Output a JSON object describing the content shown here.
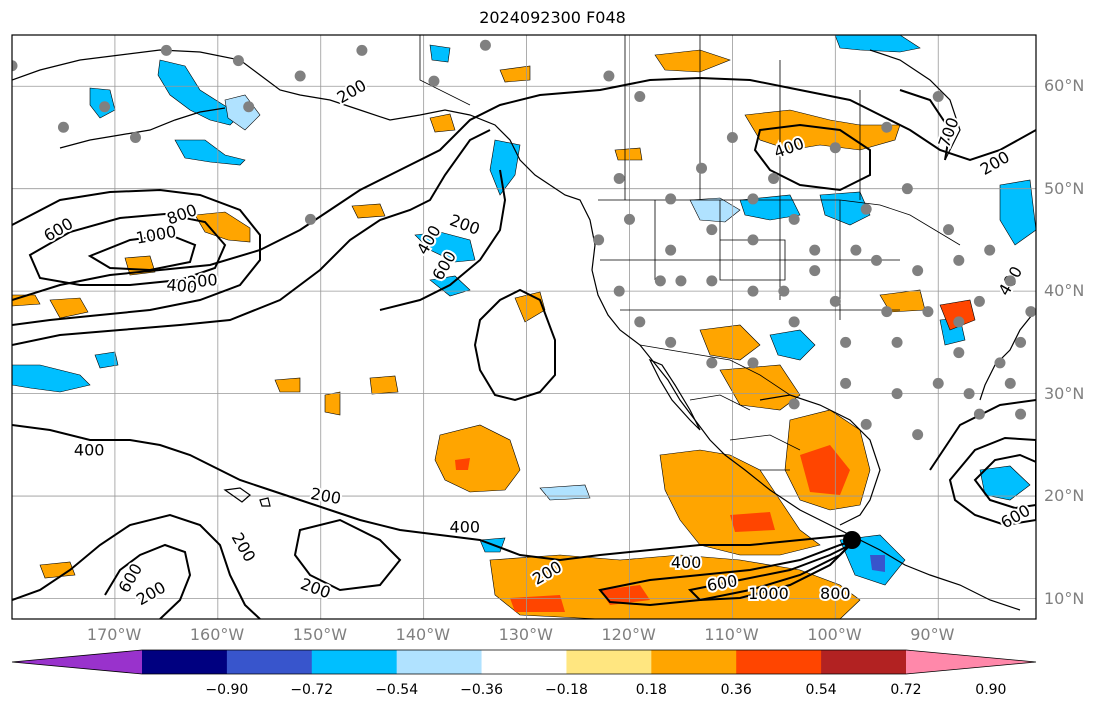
{
  "title": "2024092300 F048",
  "map": {
    "extent": {
      "lon_min": -180,
      "lon_max": -80.5,
      "lat_min": 8,
      "lat_max": 65
    },
    "lat_ticks": [
      {
        "value": 60,
        "label": "60°N"
      },
      {
        "value": 50,
        "label": "50°N"
      },
      {
        "value": 40,
        "label": "40°N"
      },
      {
        "value": 30,
        "label": "30°N"
      },
      {
        "value": 20,
        "label": "20°N"
      },
      {
        "value": 10,
        "label": "10°N"
      }
    ],
    "lon_ticks": [
      {
        "value": -170,
        "label": "170°W"
      },
      {
        "value": -160,
        "label": "160°W"
      },
      {
        "value": -150,
        "label": "150°W"
      },
      {
        "value": -140,
        "label": "140°W"
      },
      {
        "value": -130,
        "label": "130°W"
      },
      {
        "value": -120,
        "label": "120°W"
      },
      {
        "value": -110,
        "label": "110°W"
      },
      {
        "value": -100,
        "label": "100°W"
      },
      {
        "value": -90,
        "label": "90°W"
      }
    ],
    "contour_labels": [
      {
        "text": "200",
        "lon": -147.0,
        "lat": 59.5,
        "angle": -30
      },
      {
        "text": "200",
        "lon": -136.0,
        "lat": 46.5,
        "angle": 20
      },
      {
        "text": "200",
        "lon": -161.5,
        "lat": 41.0,
        "angle": -5
      },
      {
        "text": "200",
        "lon": -149.5,
        "lat": 20.0,
        "angle": 10
      },
      {
        "text": "200",
        "lon": -157.5,
        "lat": 15.0,
        "angle": 60
      },
      {
        "text": "200",
        "lon": -166.5,
        "lat": 10.5,
        "angle": -30
      },
      {
        "text": "200",
        "lon": -150.5,
        "lat": 11.0,
        "angle": 20
      },
      {
        "text": "200",
        "lon": -128.0,
        "lat": 12.5,
        "angle": -30
      },
      {
        "text": "200",
        "lon": -84.5,
        "lat": 52.5,
        "angle": -30
      },
      {
        "text": "400",
        "lon": -139.5,
        "lat": 45.0,
        "angle": -60
      },
      {
        "text": "400",
        "lon": -163.5,
        "lat": 40.5,
        "angle": 5
      },
      {
        "text": "400",
        "lon": -172.5,
        "lat": 24.5,
        "angle": 0
      },
      {
        "text": "400",
        "lon": -136.0,
        "lat": 17.0,
        "angle": 0
      },
      {
        "text": "400",
        "lon": -114.5,
        "lat": 13.5,
        "angle": 0
      },
      {
        "text": "400",
        "lon": -104.5,
        "lat": 54.0,
        "angle": -20
      },
      {
        "text": "400",
        "lon": -83.0,
        "lat": 41.0,
        "angle": -60
      },
      {
        "text": "600",
        "lon": -138.0,
        "lat": 42.5,
        "angle": -60
      },
      {
        "text": "600",
        "lon": -175.5,
        "lat": 46.0,
        "angle": -30
      },
      {
        "text": "600",
        "lon": -111.0,
        "lat": 11.5,
        "angle": -10
      },
      {
        "text": "600",
        "lon": -168.5,
        "lat": 12.0,
        "angle": -60
      },
      {
        "text": "600",
        "lon": -82.5,
        "lat": 18.0,
        "angle": -30
      },
      {
        "text": "700",
        "lon": -89.0,
        "lat": 55.5,
        "angle": -70
      },
      {
        "text": "800",
        "lon": -163.5,
        "lat": 47.5,
        "angle": -20
      },
      {
        "text": "800",
        "lon": -100.0,
        "lat": 10.5,
        "angle": 0
      },
      {
        "text": "1000",
        "lon": -166.0,
        "lat": 45.5,
        "angle": -10
      },
      {
        "text": "1000",
        "lon": -106.5,
        "lat": 10.5,
        "angle": 0
      }
    ],
    "stations": [
      [
        -165,
        63.5
      ],
      [
        -158,
        62.5
      ],
      [
        -152,
        61
      ],
      [
        -146,
        63.5
      ],
      [
        -134,
        64
      ],
      [
        -139,
        60.5
      ],
      [
        -122,
        61
      ],
      [
        -119,
        59
      ],
      [
        -113,
        52
      ],
      [
        -108,
        49
      ],
      [
        -104,
        47
      ],
      [
        -97,
        48
      ],
      [
        -93,
        50
      ],
      [
        -89,
        46
      ],
      [
        -85,
        44
      ],
      [
        -80,
        46
      ],
      [
        -102,
        44
      ],
      [
        -96,
        43
      ],
      [
        -92,
        42
      ],
      [
        -88,
        43
      ],
      [
        -83,
        41
      ],
      [
        -100,
        39
      ],
      [
        -95,
        38
      ],
      [
        -91,
        38
      ],
      [
        -86,
        39
      ],
      [
        -81,
        38
      ],
      [
        -104,
        37
      ],
      [
        -99,
        35
      ],
      [
        -94,
        35
      ],
      [
        -88,
        34
      ],
      [
        -84,
        33
      ],
      [
        -108,
        33
      ],
      [
        -112,
        33
      ],
      [
        -116,
        35
      ],
      [
        -119,
        37
      ],
      [
        -121,
        40
      ],
      [
        -117,
        41
      ],
      [
        -112,
        41
      ],
      [
        -108,
        40
      ],
      [
        -105,
        40
      ],
      [
        -116,
        44
      ],
      [
        -112,
        46
      ],
      [
        -108,
        45
      ],
      [
        -120,
        47
      ],
      [
        -116,
        49
      ],
      [
        -104,
        29
      ],
      [
        -99,
        31
      ],
      [
        -94,
        30
      ],
      [
        -90,
        31
      ],
      [
        -87,
        30
      ],
      [
        -83,
        31
      ],
      [
        -97,
        27
      ],
      [
        -92,
        26
      ],
      [
        -86,
        28
      ],
      [
        -82,
        28
      ],
      [
        -106,
        51
      ],
      [
        -110,
        55
      ],
      [
        -100,
        54
      ],
      [
        -95,
        56
      ],
      [
        -90,
        59
      ],
      [
        -151,
        47
      ],
      [
        -171,
        58
      ],
      [
        -175,
        56
      ],
      [
        -180,
        62
      ],
      [
        -157,
        58
      ],
      [
        -168,
        55
      ],
      [
        -123,
        45
      ],
      [
        -121,
        51
      ],
      [
        -115,
        41
      ],
      [
        -102,
        42
      ],
      [
        -98,
        44
      ],
      [
        -88,
        37
      ],
      [
        -82,
        35
      ]
    ]
  },
  "colorbar": {
    "colors": [
      "#9932cc",
      "#000080",
      "#3855cc",
      "#00bfff",
      "#b0e2ff",
      "#ffffff",
      "#ffe680",
      "#ffa500",
      "#ff4500",
      "#b22222",
      "#ff88aa"
    ],
    "labels": [
      "−0.90",
      "−0.72",
      "−0.54",
      "−0.36",
      "−0.18",
      "0.18",
      "0.36",
      "0.54",
      "0.72",
      "0.90"
    ]
  }
}
